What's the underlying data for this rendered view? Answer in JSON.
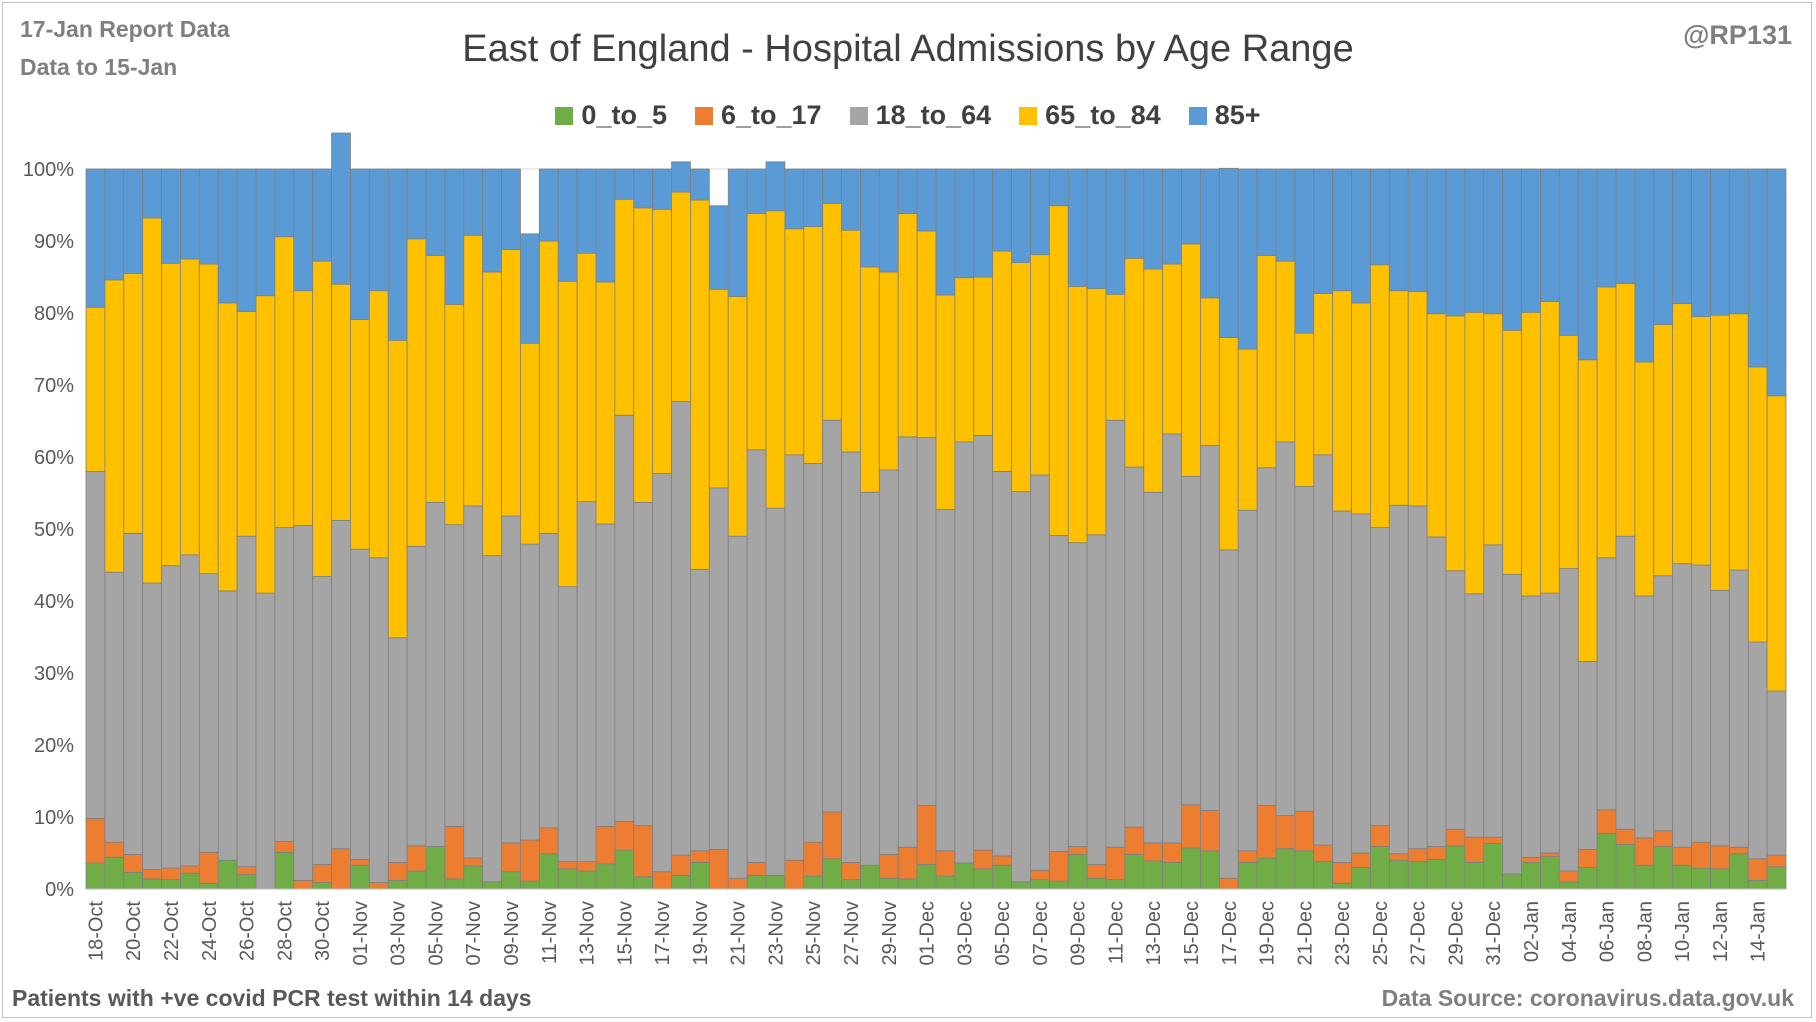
{
  "header": {
    "report_line1": "17-Jan Report Data",
    "report_line2": "Data to 15-Jan",
    "author": "@RP131"
  },
  "footer": {
    "footnote": "Patients with  +ve covid PCR test within 14 days",
    "source": "Data Source: coronavirus.data.gov.uk"
  },
  "chart_data": {
    "type": "bar",
    "stacked": true,
    "percent_stacked": true,
    "title": "East of England - Hospital Admissions by Age Range",
    "xlabel": "",
    "ylabel": "",
    "ylim": [
      0,
      100
    ],
    "y_ticks": [
      "0%",
      "10%",
      "20%",
      "30%",
      "40%",
      "50%",
      "60%",
      "70%",
      "80%",
      "90%",
      "100%"
    ],
    "grid": true,
    "legend": "top-center",
    "tick_labels": [
      "18-Oct",
      "20-Oct",
      "22-Oct",
      "24-Oct",
      "26-Oct",
      "28-Oct",
      "30-Oct",
      "01-Nov",
      "03-Nov",
      "05-Nov",
      "07-Nov",
      "09-Nov",
      "11-Nov",
      "13-Nov",
      "15-Nov",
      "17-Nov",
      "19-Nov",
      "21-Nov",
      "23-Nov",
      "25-Nov",
      "27-Nov",
      "29-Nov",
      "01-Dec",
      "03-Dec",
      "05-Dec",
      "07-Dec",
      "09-Dec",
      "11-Dec",
      "13-Dec",
      "15-Dec",
      "17-Dec",
      "19-Dec",
      "21-Dec",
      "23-Dec",
      "25-Dec",
      "27-Dec",
      "29-Dec",
      "31-Dec",
      "02-Jan",
      "04-Jan",
      "06-Jan",
      "08-Jan",
      "10-Jan",
      "12-Jan",
      "14-Jan"
    ],
    "categories": [
      "18-Oct",
      "19-Oct",
      "20-Oct",
      "21-Oct",
      "22-Oct",
      "23-Oct",
      "24-Oct",
      "25-Oct",
      "26-Oct",
      "27-Oct",
      "28-Oct",
      "29-Oct",
      "30-Oct",
      "31-Oct",
      "01-Nov",
      "02-Nov",
      "03-Nov",
      "04-Nov",
      "05-Nov",
      "06-Nov",
      "07-Nov",
      "08-Nov",
      "09-Nov",
      "10-Nov",
      "11-Nov",
      "12-Nov",
      "13-Nov",
      "14-Nov",
      "15-Nov",
      "16-Nov",
      "17-Nov",
      "18-Nov",
      "19-Nov",
      "20-Nov",
      "21-Nov",
      "22-Nov",
      "23-Nov",
      "24-Nov",
      "25-Nov",
      "26-Nov",
      "27-Nov",
      "28-Nov",
      "29-Nov",
      "30-Nov",
      "01-Dec",
      "02-Dec",
      "03-Dec",
      "04-Dec",
      "05-Dec",
      "06-Dec",
      "07-Dec",
      "08-Dec",
      "09-Dec",
      "10-Dec",
      "11-Dec",
      "12-Dec",
      "13-Dec",
      "14-Dec",
      "15-Dec",
      "16-Dec",
      "17-Dec",
      "18-Dec",
      "19-Dec",
      "20-Dec",
      "21-Dec",
      "22-Dec",
      "23-Dec",
      "24-Dec",
      "25-Dec",
      "26-Dec",
      "27-Dec",
      "28-Dec",
      "29-Dec",
      "30-Dec",
      "31-Dec",
      "01-Jan",
      "02-Jan",
      "03-Jan",
      "04-Jan",
      "05-Jan",
      "06-Jan",
      "07-Jan",
      "08-Jan",
      "09-Jan",
      "10-Jan",
      "11-Jan",
      "12-Jan",
      "13-Jan",
      "14-Jan",
      "15-Jan"
    ],
    "series": [
      {
        "name": "0_to_5",
        "color": "#70ad47",
        "values": [
          3.6,
          4.4,
          2.3,
          1.4,
          1.3,
          2.2,
          0.8,
          4.0,
          2.0,
          0.0,
          5.1,
          0.0,
          0.9,
          0.0,
          3.3,
          0.0,
          1.2,
          2.5,
          5.9,
          1.4,
          3.2,
          1.0,
          2.4,
          1.1,
          4.9,
          2.8,
          2.5,
          3.5,
          5.4,
          1.7,
          0.0,
          1.9,
          3.7,
          0.0,
          0.0,
          1.9,
          1.9,
          0.0,
          1.8,
          4.2,
          1.3,
          3.3,
          1.5,
          1.4,
          3.4,
          1.8,
          3.6,
          2.8,
          3.3,
          1.0,
          1.3,
          1.1,
          4.8,
          1.5,
          1.3,
          4.8,
          3.9,
          3.7,
          5.7,
          5.3,
          0.0,
          3.7,
          4.3,
          5.6,
          5.3,
          3.8,
          0.8,
          3.0,
          5.9,
          4.0,
          3.8,
          4.1,
          6.0,
          3.7,
          6.3,
          2.1,
          3.7,
          4.5,
          1.0,
          3.0,
          7.7,
          6.2,
          3.3,
          5.9,
          3.3,
          2.9,
          2.8,
          4.9,
          1.2,
          3.1
        ]
      },
      {
        "name": "6_to_17",
        "color": "#ed7d31",
        "values": [
          6.2,
          2.1,
          2.5,
          1.3,
          1.6,
          1.0,
          4.3,
          0.0,
          1.1,
          0.0,
          1.5,
          1.2,
          2.5,
          5.6,
          0.8,
          0.9,
          2.5,
          3.5,
          0.0,
          7.3,
          1.1,
          0.0,
          4.0,
          5.7,
          3.6,
          1.0,
          1.3,
          5.2,
          4.0,
          7.1,
          2.4,
          2.8,
          1.6,
          5.5,
          1.5,
          1.8,
          0.0,
          4.0,
          4.7,
          6.5,
          2.4,
          0.0,
          3.3,
          4.4,
          8.2,
          3.5,
          0.0,
          2.6,
          1.3,
          0.0,
          1.3,
          4.1,
          1.1,
          1.9,
          4.5,
          3.8,
          2.5,
          2.7,
          6.0,
          5.6,
          1.5,
          1.6,
          7.3,
          4.6,
          5.5,
          2.3,
          2.9,
          2.0,
          2.9,
          0.9,
          1.8,
          1.8,
          2.3,
          3.5,
          0.9,
          0.0,
          0.7,
          0.5,
          1.5,
          2.5,
          3.3,
          2.1,
          3.8,
          2.2,
          2.5,
          3.6,
          3.2,
          0.9,
          3.0,
          1.6
        ]
      },
      {
        "name": "18_to_64",
        "color": "#a5a5a5",
        "values": [
          48.2,
          37.5,
          44.6,
          39.8,
          42.0,
          43.2,
          38.7,
          37.4,
          45.9,
          41.1,
          43.6,
          49.3,
          40.0,
          45.6,
          43.1,
          45.1,
          31.2,
          41.6,
          47.8,
          41.9,
          48.9,
          45.3,
          45.4,
          41.1,
          40.9,
          38.2,
          50.0,
          42.0,
          56.4,
          44.9,
          55.3,
          63.0,
          39.1,
          50.2,
          47.5,
          57.3,
          51.0,
          56.3,
          52.6,
          54.4,
          57.0,
          51.8,
          53.4,
          57.0,
          51.1,
          47.4,
          58.5,
          57.6,
          53.4,
          54.2,
          54.9,
          43.9,
          42.2,
          45.8,
          59.3,
          50.0,
          48.7,
          56.8,
          45.6,
          50.7,
          45.6,
          47.3,
          46.9,
          51.9,
          45.1,
          54.2,
          48.8,
          47.1,
          41.4,
          48.4,
          47.6,
          43.0,
          35.9,
          33.8,
          40.6,
          41.6,
          36.3,
          36.1,
          42.0,
          26.1,
          35.0,
          40.7,
          33.6,
          35.4,
          39.4,
          38.5,
          35.5,
          38.5,
          30.1,
          22.8
        ]
      },
      {
        "name": "65_to_84",
        "color": "#ffc000",
        "values": [
          22.8,
          40.6,
          36.1,
          50.7,
          42.0,
          41.1,
          43.0,
          40.0,
          31.2,
          41.3,
          40.4,
          32.6,
          43.8,
          32.8,
          31.9,
          37.1,
          41.3,
          42.7,
          34.3,
          30.6,
          37.6,
          39.4,
          37.0,
          27.9,
          40.6,
          42.4,
          34.5,
          33.6,
          30.0,
          40.9,
          36.7,
          29.1,
          51.3,
          27.6,
          33.3,
          32.8,
          41.3,
          31.4,
          32.9,
          30.1,
          30.8,
          31.3,
          27.5,
          31.0,
          28.7,
          29.8,
          22.8,
          22.0,
          30.6,
          31.8,
          30.6,
          45.8,
          35.6,
          34.2,
          17.5,
          29.0,
          31.0,
          23.6,
          32.3,
          20.5,
          29.5,
          22.4,
          29.5,
          25.1,
          21.3,
          22.4,
          30.6,
          29.3,
          36.5,
          29.8,
          29.8,
          31.0,
          35.4,
          39.1,
          32.1,
          33.9,
          39.4,
          40.5,
          32.4,
          41.9,
          37.6,
          35.1,
          32.5,
          34.9,
          36.1,
          34.5,
          38.2,
          35.6,
          38.2,
          41.0
        ]
      },
      {
        "name": "85+",
        "color": "#5b9bd5",
        "values": [
          19.2,
          15.4,
          14.5,
          6.8,
          13.1,
          12.5,
          13.2,
          18.6,
          19.8,
          17.6,
          9.4,
          16.9,
          12.8,
          21.0,
          20.9,
          16.9,
          23.8,
          9.7,
          12.0,
          18.8,
          9.2,
          14.3,
          11.2,
          15.2,
          10.0,
          15.6,
          11.7,
          15.7,
          4.2,
          5.4,
          5.6,
          4.2,
          4.3,
          11.6,
          17.7,
          6.2,
          6.8,
          8.3,
          8.0,
          4.8,
          8.5,
          13.6,
          14.3,
          6.2,
          8.6,
          17.5,
          15.1,
          15.0,
          11.4,
          13.0,
          11.9,
          5.1,
          16.3,
          16.6,
          17.4,
          12.4,
          13.9,
          13.2,
          10.4,
          17.9,
          23.5,
          25.0,
          12.0,
          12.8,
          22.8,
          17.3,
          16.9,
          18.6,
          13.3,
          16.9,
          17.0,
          20.1,
          20.4,
          19.9,
          20.1,
          22.4,
          19.9,
          18.4,
          23.1,
          26.5,
          16.4,
          15.9,
          26.8,
          21.6,
          18.7,
          20.5,
          20.3,
          20.1,
          27.5,
          31.5
        ]
      }
    ]
  }
}
